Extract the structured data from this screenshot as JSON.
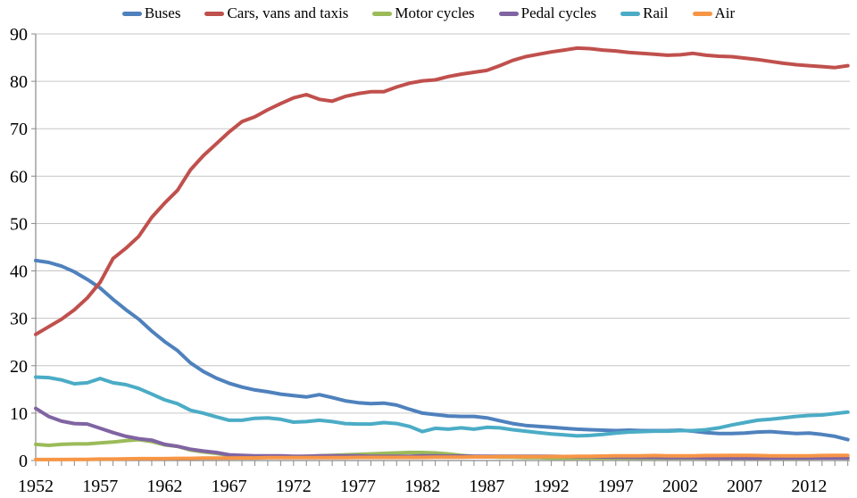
{
  "colors": {
    "axis": "#898989",
    "grid": "#C6C6C6",
    "text": "#000000",
    "background": "#FFFFFF"
  },
  "chart_data": {
    "type": "line",
    "title": "",
    "xlabel": "",
    "ylabel": "",
    "grid": "horizontal",
    "legend_position": "top",
    "ylim": [
      0,
      90
    ],
    "y_ticks": [
      0,
      10,
      20,
      30,
      40,
      50,
      60,
      70,
      80,
      90
    ],
    "x_start_year": 1952,
    "x_end_year": 2015,
    "x_tick_every_year": true,
    "x_label_interval": 5,
    "x_tick_labels": [
      "1952",
      "1957",
      "1962",
      "1967",
      "1972",
      "1977",
      "1982",
      "1987",
      "1992",
      "1997",
      "2002",
      "2007",
      "2012"
    ],
    "years": [
      1952,
      1953,
      1954,
      1955,
      1956,
      1957,
      1958,
      1959,
      1960,
      1961,
      1962,
      1963,
      1964,
      1965,
      1966,
      1967,
      1968,
      1969,
      1970,
      1971,
      1972,
      1973,
      1974,
      1975,
      1976,
      1977,
      1978,
      1979,
      1980,
      1981,
      1982,
      1983,
      1984,
      1985,
      1986,
      1987,
      1988,
      1989,
      1990,
      1991,
      1992,
      1993,
      1994,
      1995,
      1996,
      1997,
      1998,
      1999,
      2000,
      2001,
      2002,
      2003,
      2004,
      2005,
      2006,
      2007,
      2008,
      2009,
      2010,
      2011,
      2012,
      2013,
      2014,
      2015
    ],
    "series": [
      {
        "name": "Buses",
        "color": "#4F81BD",
        "values": [
          42.2,
          41.8,
          41.0,
          39.8,
          38.2,
          36.4,
          34.0,
          31.8,
          29.8,
          27.3,
          25.1,
          23.2,
          20.6,
          18.8,
          17.4,
          16.3,
          15.5,
          14.9,
          14.5,
          14.0,
          13.7,
          13.4,
          13.9,
          13.3,
          12.6,
          12.2,
          12.0,
          12.1,
          11.7,
          10.8,
          10.0,
          9.7,
          9.4,
          9.3,
          9.3,
          9.0,
          8.4,
          7.8,
          7.4,
          7.2,
          7.0,
          6.8,
          6.6,
          6.5,
          6.4,
          6.3,
          6.4,
          6.3,
          6.3,
          6.3,
          6.4,
          6.2,
          5.9,
          5.7,
          5.7,
          5.8,
          6.0,
          6.1,
          5.9,
          5.7,
          5.8,
          5.5,
          5.1,
          4.4
        ]
      },
      {
        "name": "Cars, vans and taxis",
        "color": "#C0504D",
        "values": [
          26.6,
          28.2,
          29.8,
          31.8,
          34.3,
          37.6,
          42.6,
          44.8,
          47.3,
          51.3,
          54.3,
          57.0,
          61.3,
          64.3,
          66.8,
          69.3,
          71.5,
          72.5,
          74.0,
          75.3,
          76.5,
          77.2,
          76.2,
          75.8,
          76.8,
          77.4,
          77.8,
          77.8,
          78.8,
          79.6,
          80.1,
          80.3,
          81.0,
          81.5,
          81.9,
          82.3,
          83.3,
          84.4,
          85.2,
          85.7,
          86.2,
          86.6,
          87.0,
          86.9,
          86.6,
          86.4,
          86.1,
          85.9,
          85.7,
          85.5,
          85.6,
          85.9,
          85.5,
          85.3,
          85.2,
          84.9,
          84.6,
          84.2,
          83.8,
          83.5,
          83.3,
          83.1,
          82.9,
          83.3
        ]
      },
      {
        "name": "Motor cycles",
        "color": "#9BBB59",
        "values": [
          3.4,
          3.2,
          3.4,
          3.5,
          3.5,
          3.7,
          3.9,
          4.2,
          4.4,
          4.0,
          3.3,
          3.0,
          2.2,
          1.8,
          1.5,
          1.1,
          0.9,
          0.9,
          0.8,
          0.8,
          0.8,
          0.9,
          1.0,
          1.1,
          1.2,
          1.3,
          1.4,
          1.5,
          1.6,
          1.7,
          1.7,
          1.6,
          1.4,
          1.1,
          0.9,
          0.8,
          0.7,
          0.7,
          0.6,
          0.6,
          0.5,
          0.5,
          0.5,
          0.5,
          0.5,
          0.5,
          0.5,
          0.5,
          0.5,
          0.5,
          0.5,
          0.5,
          0.5,
          0.5,
          0.5,
          0.5,
          0.5,
          0.5,
          0.5,
          0.5,
          0.5,
          0.6,
          0.6,
          0.5
        ]
      },
      {
        "name": "Pedal cycles",
        "color": "#8064A2",
        "values": [
          11.0,
          9.3,
          8.3,
          7.8,
          7.7,
          6.8,
          5.9,
          5.1,
          4.6,
          4.3,
          3.4,
          3.0,
          2.4,
          2.0,
          1.7,
          1.2,
          1.1,
          1.0,
          1.0,
          1.0,
          0.9,
          0.9,
          1.0,
          1.0,
          1.0,
          1.0,
          0.9,
          0.9,
          0.9,
          0.9,
          1.0,
          1.0,
          0.95,
          0.95,
          0.9,
          0.9,
          0.9,
          0.9,
          0.9,
          0.9,
          0.9,
          0.85,
          0.8,
          0.8,
          0.75,
          0.7,
          0.7,
          0.65,
          0.65,
          0.6,
          0.6,
          0.6,
          0.55,
          0.5,
          0.5,
          0.5,
          0.5,
          0.55,
          0.55,
          0.55,
          0.55,
          0.55,
          0.55,
          0.55
        ]
      },
      {
        "name": "Rail",
        "color": "#4BACC6",
        "values": [
          17.6,
          17.5,
          17.0,
          16.2,
          16.4,
          17.3,
          16.4,
          16.0,
          15.2,
          14.0,
          12.8,
          12.0,
          10.6,
          10.0,
          9.2,
          8.5,
          8.5,
          8.9,
          9.0,
          8.7,
          8.1,
          8.2,
          8.5,
          8.2,
          7.8,
          7.7,
          7.7,
          8.0,
          7.8,
          7.2,
          6.1,
          6.8,
          6.6,
          6.9,
          6.6,
          7.0,
          6.9,
          6.5,
          6.2,
          5.9,
          5.6,
          5.4,
          5.2,
          5.3,
          5.5,
          5.8,
          6.0,
          6.1,
          6.2,
          6.2,
          6.3,
          6.3,
          6.5,
          6.9,
          7.5,
          8.0,
          8.5,
          8.7,
          9.0,
          9.3,
          9.5,
          9.6,
          9.9,
          10.2
        ]
      },
      {
        "name": "Air",
        "color": "#F79646",
        "values": [
          0.2,
          0.2,
          0.2,
          0.25,
          0.25,
          0.3,
          0.3,
          0.35,
          0.4,
          0.4,
          0.4,
          0.45,
          0.45,
          0.5,
          0.5,
          0.5,
          0.55,
          0.55,
          0.6,
          0.6,
          0.6,
          0.6,
          0.6,
          0.6,
          0.6,
          0.65,
          0.65,
          0.65,
          0.65,
          0.65,
          0.65,
          0.7,
          0.7,
          0.7,
          0.75,
          0.75,
          0.8,
          0.8,
          0.8,
          0.8,
          0.85,
          0.85,
          0.9,
          0.9,
          0.95,
          1.0,
          1.0,
          1.0,
          1.05,
          1.0,
          1.0,
          1.0,
          1.05,
          1.05,
          1.1,
          1.1,
          1.05,
          1.0,
          1.0,
          1.0,
          1.0,
          1.05,
          1.1,
          1.1
        ]
      }
    ]
  }
}
